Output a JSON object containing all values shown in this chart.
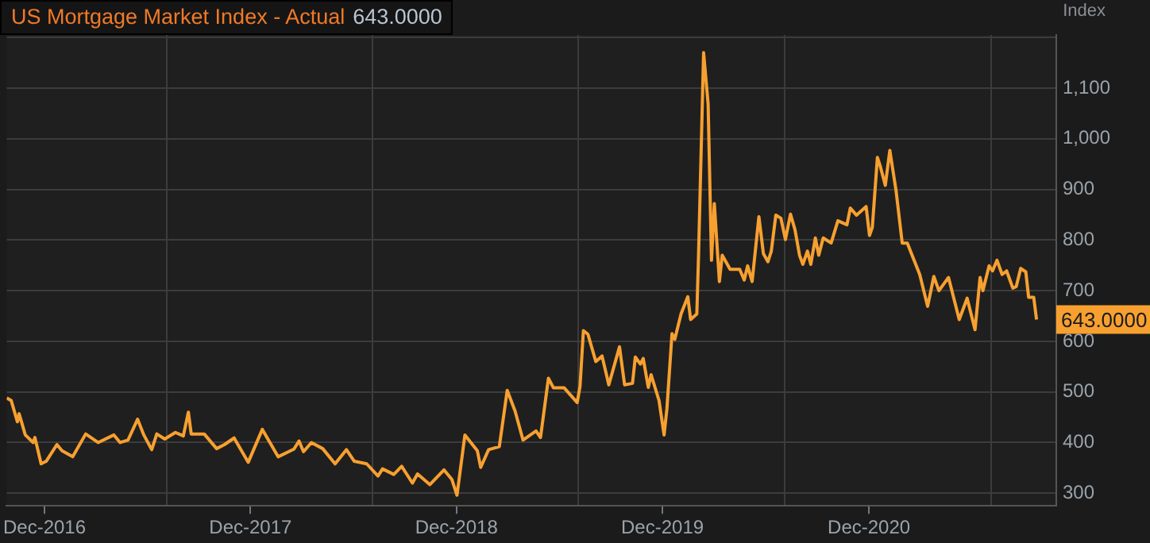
{
  "chart_data": {
    "type": "line",
    "title": "US Mortgage Market Index - Actual",
    "ylabel": "Index",
    "annotations": [
      "643.0000",
      {
        "text": "643.0000",
        "x": "2021-09-24",
        "y": 643
      }
    ],
    "xlim": [
      "2016-09-25",
      "2021-10-29"
    ],
    "ylim": [
      275,
      1205
    ],
    "xticks": [
      {
        "value": "2016-12-01",
        "label": "Dec-2016"
      },
      {
        "value": "2017-07-05",
        "label": null
      },
      {
        "value": "2017-12-01",
        "label": "Dec-2017"
      },
      {
        "value": "2018-07-05",
        "label": null
      },
      {
        "value": "2018-12-01",
        "label": "Dec-2018"
      },
      {
        "value": "2019-07-05",
        "label": null
      },
      {
        "value": "2019-12-01",
        "label": "Dec-2019"
      },
      {
        "value": "2020-07-05",
        "label": null
      },
      {
        "value": "2020-12-01",
        "label": "Dec-2020"
      },
      {
        "value": "2021-07-05",
        "label": null
      }
    ],
    "yticks": [
      300,
      400,
      500,
      600,
      700,
      800,
      900,
      {
        "value": 1000,
        "label": "1,000"
      },
      {
        "value": 1100,
        "label": "1,100"
      },
      {
        "value": 1200,
        "label": null
      }
    ],
    "grid": true,
    "legend": false,
    "marker": "none",
    "line_style": "solid",
    "series": [
      {
        "color": "#f7a030",
        "x": [
          "2016-09-25",
          "2016-10-03",
          "2016-10-14",
          "2016-10-17",
          "2016-10-28",
          "2016-11-11",
          "2016-11-14",
          "2016-11-25",
          "2016-12-04",
          "2016-12-23",
          "2017-01-01",
          "2017-01-20",
          "2017-02-12",
          "2017-03-06",
          "2017-04-03",
          "2017-04-14",
          "2017-04-28",
          "2017-05-15",
          "2017-05-26",
          "2017-06-09",
          "2017-06-18",
          "2017-07-02",
          "2017-07-21",
          "2017-08-04",
          "2017-08-13",
          "2017-08-18",
          "2017-09-10",
          "2017-10-02",
          "2017-10-16",
          "2017-11-02",
          "2017-11-27",
          "2017-12-22",
          "2018-01-19",
          "2018-02-16",
          "2018-02-25",
          "2018-03-05",
          "2018-03-19",
          "2018-04-08",
          "2018-04-30",
          "2018-05-20",
          "2018-06-03",
          "2018-06-25",
          "2018-07-15",
          "2018-07-23",
          "2018-08-12",
          "2018-08-26",
          "2018-09-14",
          "2018-09-23",
          "2018-10-15",
          "2018-11-09",
          "2018-11-23",
          "2018-12-02",
          "2018-12-16",
          "2019-01-07",
          "2019-01-13",
          "2019-01-27",
          "2019-02-15",
          "2019-03-01",
          "2019-03-15",
          "2019-03-29",
          "2019-04-21",
          "2019-04-29",
          "2019-05-13",
          "2019-05-22",
          "2019-06-10",
          "2019-07-03",
          "2019-07-08",
          "2019-07-14",
          "2019-07-22",
          "2019-08-05",
          "2019-08-16",
          "2019-08-28",
          "2019-09-16",
          "2019-09-25",
          "2019-10-09",
          "2019-10-14",
          "2019-10-23",
          "2019-10-28",
          "2019-11-06",
          "2019-11-11",
          "2019-11-25",
          "2019-12-04",
          "2019-12-09",
          "2019-12-18",
          "2019-12-23",
          "2020-01-03",
          "2020-01-15",
          "2020-01-20",
          "2020-01-31",
          "2020-02-03",
          "2020-02-12",
          "2020-02-20",
          "2020-02-26",
          "2020-03-02",
          "2020-03-11",
          "2020-03-16",
          "2020-03-30",
          "2020-04-16",
          "2020-04-24",
          "2020-04-30",
          "2020-05-08",
          "2020-05-20",
          "2020-05-28",
          "2020-06-05",
          "2020-06-11",
          "2020-06-19",
          "2020-06-28",
          "2020-07-06",
          "2020-07-15",
          "2020-07-23",
          "2020-07-31",
          "2020-08-06",
          "2020-08-14",
          "2020-08-20",
          "2020-08-28",
          "2020-09-03",
          "2020-09-11",
          "2020-09-25",
          "2020-10-07",
          "2020-10-23",
          "2020-10-29",
          "2020-11-09",
          "2020-11-26",
          "2020-12-02",
          "2020-12-07",
          "2020-12-16",
          "2020-12-21",
          "2020-12-30",
          "2021-01-07",
          "2021-01-18",
          "2021-01-29",
          "2021-02-07",
          "2021-03-01",
          "2021-03-15",
          "2021-03-26",
          "2021-04-04",
          "2021-04-21",
          "2021-05-10",
          "2021-05-24",
          "2021-06-07",
          "2021-06-16",
          "2021-06-21",
          "2021-07-02",
          "2021-07-08",
          "2021-07-16",
          "2021-07-25",
          "2021-08-02",
          "2021-08-13",
          "2021-08-19",
          "2021-08-27",
          "2021-09-05",
          "2021-09-10",
          "2021-09-19",
          "2021-09-24"
        ],
        "values": [
          488,
          483,
          441,
          457,
          415,
          400,
          410,
          358,
          363,
          396,
          384,
          372,
          417,
          400,
          415,
          400,
          405,
          446,
          415,
          386,
          417,
          407,
          420,
          413,
          460,
          417,
          417,
          388,
          396,
          409,
          361,
          426,
          372,
          387,
          403,
          382,
          400,
          388,
          358,
          386,
          363,
          358,
          334,
          348,
          337,
          353,
          320,
          338,
          317,
          346,
          327,
          296,
          415,
          384,
          351,
          386,
          392,
          503,
          462,
          405,
          423,
          410,
          527,
          508,
          508,
          479,
          511,
          621,
          614,
          560,
          571,
          514,
          589,
          514,
          517,
          569,
          555,
          566,
          509,
          534,
          483,
          415,
          467,
          615,
          604,
          654,
          688,
          643,
          654,
          768,
          1170,
          1069,
          760,
          872,
          718,
          770,
          742,
          742,
          721,
          749,
          718,
          846,
          773,
          757,
          778,
          849,
          843,
          801,
          851,
          820,
          770,
          752,
          778,
          752,
          804,
          770,
          804,
          794,
          838,
          830,
          863,
          849,
          866,
          809,
          825,
          963,
          946,
          908,
          977,
          898,
          794,
          794,
          732,
          669,
          728,
          700,
          726,
          643,
          685,
          623,
          726,
          700,
          749,
          739,
          760,
          732,
          739,
          705,
          708,
          744,
          737,
          687,
          687,
          643
        ]
      }
    ]
  }
}
